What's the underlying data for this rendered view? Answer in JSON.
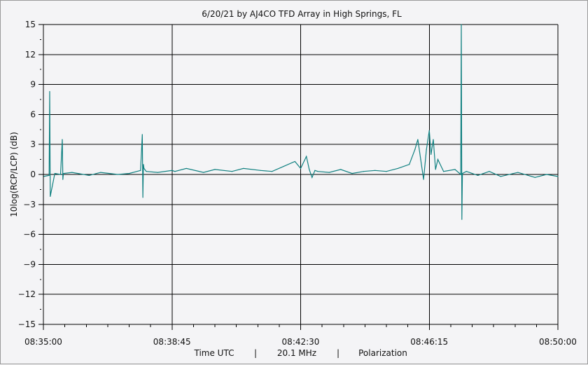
{
  "chart_data": {
    "type": "line",
    "title": "6/20/21  by  AJ4CO TFD Array  in  High Springs, FL",
    "ylabel": "10log(RCP/LCP) (dB)",
    "xlabel_parts": [
      "Time UTC",
      "|",
      "20.1 MHz",
      "|",
      "Polarization"
    ],
    "ylim": [
      -15,
      15
    ],
    "y_ticks": [
      15,
      12,
      9,
      6,
      3,
      0,
      -3,
      -6,
      -9,
      -12,
      -15
    ],
    "x_range_seconds": [
      0,
      900
    ],
    "x_ticks": [
      {
        "t": 0,
        "label": "08:35:00"
      },
      {
        "t": 225,
        "label": "08:38:45"
      },
      {
        "t": 450,
        "label": "08:42:30"
      },
      {
        "t": 675,
        "label": "08:46:15"
      },
      {
        "t": 900,
        "label": "08:50:00"
      }
    ],
    "grid": true,
    "series_color": "#0f8080",
    "series": [
      {
        "x": [
          0,
          10,
          11,
          12,
          20,
          30,
          33,
          34,
          35,
          50,
          80,
          100,
          130,
          150,
          170,
          173,
          174,
          175,
          176,
          180,
          200,
          225,
          230,
          250,
          280,
          300,
          330,
          350,
          380,
          400,
          420,
          440,
          450,
          460,
          465,
          470,
          475,
          480,
          500,
          520,
          540,
          560,
          580,
          600,
          620,
          640,
          650,
          655,
          660,
          665,
          670,
          675,
          678,
          682,
          686,
          690,
          700,
          720,
          730,
          731,
          732,
          733,
          740,
          760,
          780,
          800,
          830,
          860,
          880,
          900
        ],
        "y": [
          -0.2,
          -0.1,
          8.3,
          -2.2,
          0.1,
          0.0,
          3.5,
          -0.5,
          0.1,
          0.2,
          -0.1,
          0.2,
          0.0,
          0.1,
          0.4,
          4.0,
          -2.3,
          1.0,
          0.6,
          0.3,
          0.2,
          0.4,
          0.3,
          0.6,
          0.2,
          0.5,
          0.3,
          0.6,
          0.4,
          0.3,
          0.8,
          1.3,
          0.6,
          1.8,
          0.5,
          -0.3,
          0.4,
          0.3,
          0.2,
          0.5,
          0.1,
          0.3,
          0.4,
          0.3,
          0.6,
          1.0,
          2.5,
          3.5,
          1.5,
          -0.5,
          2.5,
          4.4,
          2.0,
          3.5,
          0.5,
          1.5,
          0.3,
          0.5,
          0.0,
          15.0,
          -4.5,
          0.1,
          0.3,
          -0.1,
          0.3,
          -0.2,
          0.2,
          -0.3,
          0.0,
          -0.2
        ]
      }
    ]
  }
}
